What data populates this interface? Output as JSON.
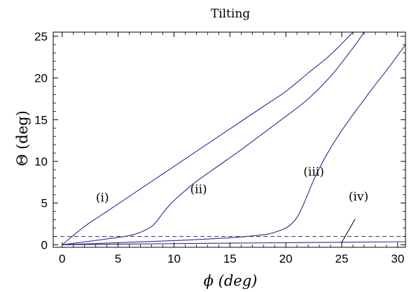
{
  "chart_data": {
    "type": "line",
    "title": "Tilting",
    "xlabel": "ϕ (deg)",
    "ylabel": "Θ (deg)",
    "xlim": [
      -0.8,
      30.7
    ],
    "ylim": [
      -0.3,
      25.5
    ],
    "xticks": [
      0,
      5,
      10,
      15,
      20,
      25,
      30
    ],
    "yticks": [
      0,
      5,
      10,
      15,
      20,
      25
    ],
    "grid": false,
    "reference_line": {
      "y": 1,
      "style": "dashed"
    },
    "series": [
      {
        "name": "(i)",
        "x": [
          0,
          2,
          4,
          6,
          8,
          10,
          12,
          14,
          16,
          18,
          20,
          22,
          24,
          26
        ],
        "y": [
          0,
          2.2,
          4.0,
          5.8,
          7.6,
          9.4,
          11.2,
          13.0,
          14.8,
          16.6,
          18.4,
          20.6,
          22.8,
          25.5
        ]
      },
      {
        "name": "(ii)",
        "x": [
          0,
          2,
          4,
          6,
          7,
          8,
          8.5,
          9,
          9.5,
          10,
          11,
          12,
          14,
          16,
          18,
          20,
          22,
          24,
          26,
          27
        ],
        "y": [
          0,
          0.35,
          0.7,
          1.1,
          1.5,
          2.2,
          2.9,
          3.8,
          4.6,
          5.3,
          6.5,
          7.6,
          9.5,
          11.4,
          13.4,
          15.4,
          17.5,
          20.2,
          23.6,
          25.5
        ]
      },
      {
        "name": "(iii)",
        "x": [
          0,
          5,
          10,
          15,
          18,
          19,
          20,
          20.5,
          21,
          21.5,
          22,
          22.5,
          23,
          24,
          25,
          26,
          27,
          28,
          29,
          30,
          30.7
        ],
        "y": [
          0,
          0.25,
          0.5,
          0.85,
          1.2,
          1.5,
          2.0,
          2.5,
          3.3,
          4.6,
          6.2,
          7.8,
          9.2,
          11.6,
          13.7,
          15.6,
          17.4,
          19.2,
          20.9,
          22.7,
          24.0
        ]
      },
      {
        "name": "(iv)",
        "x": [
          0,
          5,
          10,
          15,
          20,
          25,
          30,
          30.7
        ],
        "y": [
          0,
          0.07,
          0.14,
          0.2,
          0.25,
          0.3,
          0.36,
          0.37
        ]
      }
    ],
    "annotations": [
      {
        "text": "(i)",
        "x": 3.6,
        "y": 5.2
      },
      {
        "text": "(ii)",
        "x": 12.2,
        "y": 6.2
      },
      {
        "text": "(iii)",
        "x": 22.5,
        "y": 8.3
      },
      {
        "text": "(iv)",
        "x": 26.5,
        "y": 5.3,
        "pointer": {
          "from": [
            26.2,
            3.1
          ],
          "to": [
            25.0,
            0.3
          ]
        }
      }
    ]
  }
}
